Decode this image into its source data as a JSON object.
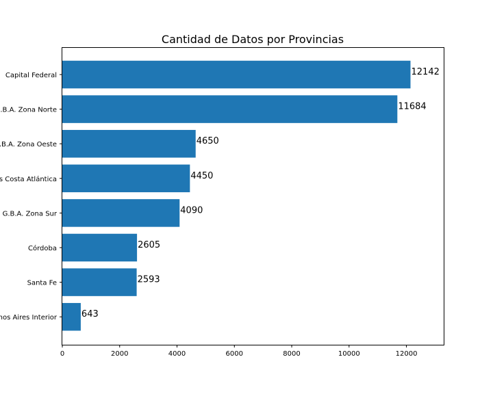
{
  "chart_data": {
    "type": "bar",
    "orientation": "horizontal",
    "title": "Cantidad de Datos por Provincias",
    "xlabel": "",
    "ylabel": "",
    "categories": [
      "Capital Federal",
      "G.B.A. Zona Norte",
      "G.B.A. Zona Oeste",
      "Buenos Aires Costa Atlántica",
      "G.B.A. Zona Sur",
      "Córdoba",
      "Santa Fe",
      "Buenos Aires Interior"
    ],
    "values": [
      12142,
      11684,
      4650,
      4450,
      4090,
      2605,
      2593,
      643
    ],
    "data_labels": [
      "12142",
      "11684",
      "4650",
      "4450",
      "4090",
      "2605",
      "2593",
      "643"
    ],
    "xlim": [
      0,
      13300
    ],
    "x_ticks": [
      0,
      2000,
      4000,
      6000,
      8000,
      10000,
      12000
    ],
    "x_tick_labels": [
      "0",
      "2000",
      "4000",
      "6000",
      "8000",
      "10000",
      "12000"
    ],
    "grid": false,
    "legend": "none",
    "bar_color": "#1f77b4"
  }
}
